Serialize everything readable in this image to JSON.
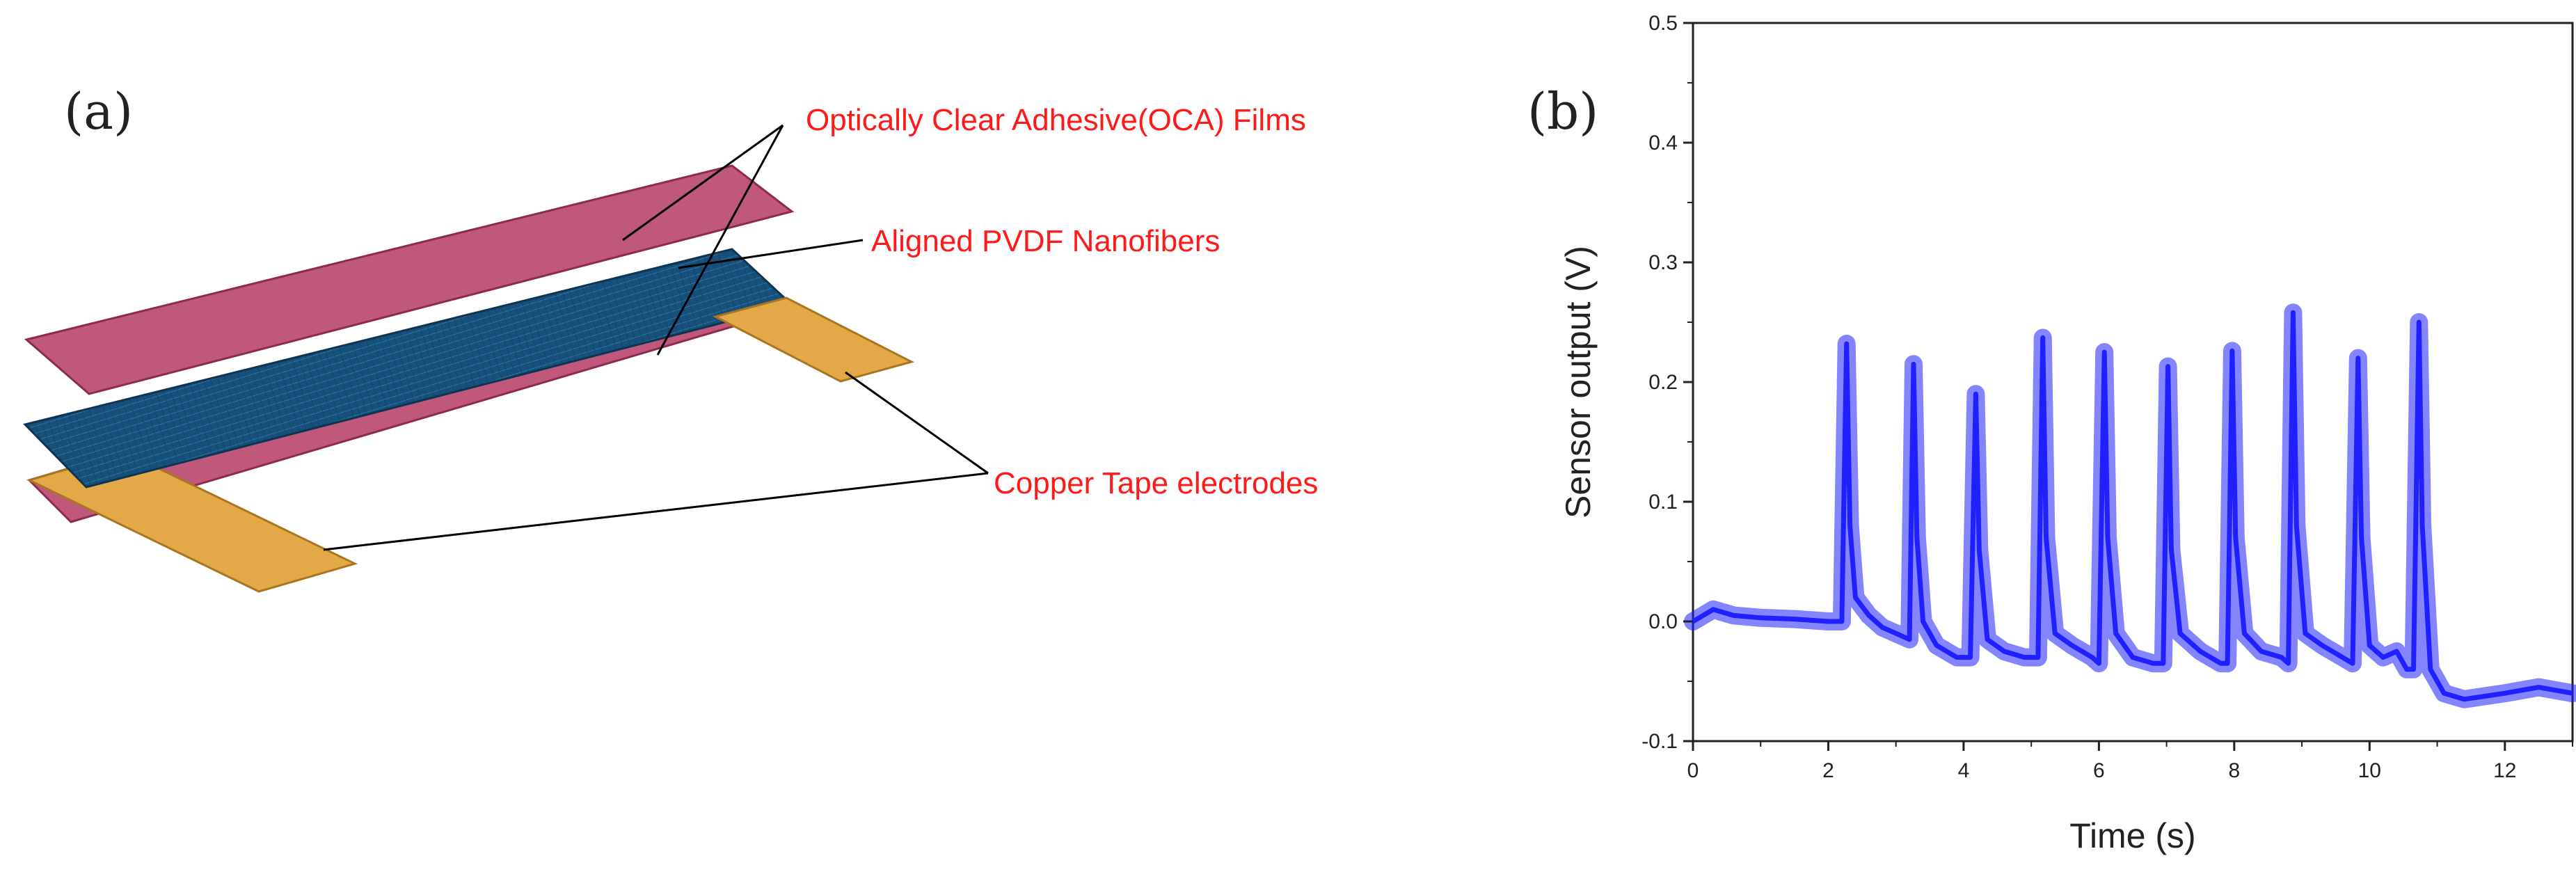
{
  "figure": {
    "panel_a": {
      "label": "(a)",
      "callouts": {
        "oca": "Optically Clear Adhesive(OCA) Films",
        "pvdf": "Aligned PVDF Nanofibers",
        "copper": "Copper Tape electrodes"
      },
      "colors": {
        "oca_film": "#c0587c",
        "pvdf_layer": "#17507a",
        "copper": "#e3a948",
        "callout_text": "#ff1a1a"
      }
    },
    "panel_b": {
      "label": "(b)"
    }
  },
  "chart_data": {
    "type": "line",
    "xlabel": "Time (s)",
    "ylabel": "Sensor output (V)",
    "xlim": [
      0,
      13
    ],
    "ylim": [
      -0.1,
      0.5
    ],
    "xticks": [
      0,
      2,
      4,
      6,
      8,
      10,
      12
    ],
    "yticks": [
      -0.1,
      0.0,
      0.1,
      0.2,
      0.3,
      0.4,
      0.5
    ],
    "ytick_labels": [
      "-0.1",
      "0.0",
      "0.1",
      "0.2",
      "0.3",
      "0.4",
      "0.5"
    ],
    "grid": false,
    "line_color": "#1f1fff",
    "series": [
      {
        "x": [
          0,
          0.3,
          0.6,
          1.0,
          1.5,
          2.0,
          2.2,
          2.27,
          2.32,
          2.4,
          2.6,
          2.8,
          3.0,
          3.2,
          3.26,
          3.31,
          3.4,
          3.6,
          3.9,
          4.1,
          4.18,
          4.23,
          4.35,
          4.6,
          4.9,
          5.1,
          5.17,
          5.22,
          5.35,
          5.6,
          5.9,
          6.0,
          6.08,
          6.13,
          6.25,
          6.5,
          6.8,
          6.95,
          7.02,
          7.07,
          7.2,
          7.5,
          7.8,
          7.9,
          7.97,
          8.02,
          8.15,
          8.4,
          8.7,
          8.8,
          8.87,
          8.92,
          9.05,
          9.3,
          9.6,
          9.75,
          9.83,
          9.88,
          10.0,
          10.2,
          10.4,
          10.55,
          10.65,
          10.73,
          10.78,
          10.9,
          11.1,
          11.4,
          12.0,
          12.5,
          13.0
        ],
        "y": [
          0.0,
          0.01,
          0.005,
          0.003,
          0.002,
          0.0,
          0.0,
          0.232,
          0.08,
          0.02,
          0.005,
          -0.005,
          -0.01,
          -0.015,
          0.215,
          0.07,
          0.0,
          -0.02,
          -0.03,
          -0.03,
          0.19,
          0.06,
          -0.015,
          -0.025,
          -0.03,
          -0.03,
          0.237,
          0.07,
          -0.01,
          -0.02,
          -0.03,
          -0.035,
          0.225,
          0.07,
          -0.01,
          -0.03,
          -0.035,
          -0.035,
          0.213,
          0.06,
          -0.01,
          -0.025,
          -0.035,
          -0.035,
          0.226,
          0.07,
          -0.01,
          -0.025,
          -0.03,
          -0.035,
          0.258,
          0.08,
          -0.01,
          -0.02,
          -0.03,
          -0.035,
          0.22,
          0.07,
          -0.02,
          -0.03,
          -0.025,
          -0.04,
          -0.04,
          0.25,
          0.08,
          -0.04,
          -0.06,
          -0.065,
          -0.06,
          -0.055,
          -0.06
        ]
      }
    ]
  }
}
